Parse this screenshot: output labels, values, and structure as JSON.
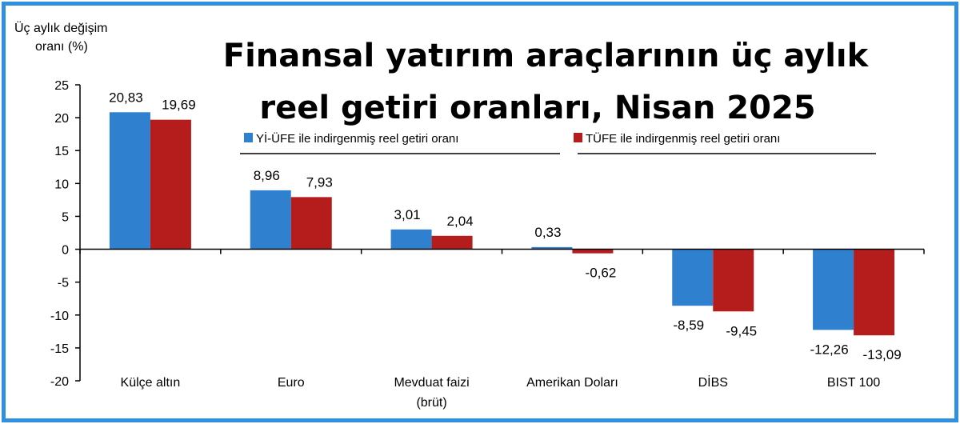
{
  "chart_data": {
    "type": "bar",
    "title": "Finansal yatırım araçlarının üç aylık reel getiri oranları, Nisan 2025",
    "title_lines": [
      "Finansal yatırım araçlarının üç aylık",
      "reel getiri oranları, Nisan 2025"
    ],
    "ylabel_lines": [
      "Üç aylık değişim",
      "oranı (%)"
    ],
    "xlabel": "",
    "ylim": [
      -20,
      25
    ],
    "yticks": [
      25,
      20,
      15,
      10,
      5,
      0,
      -5,
      -10,
      -15,
      -20
    ],
    "categories": [
      "Külçe altın",
      "Euro",
      "Mevduat faizi (brüt)",
      "Amerikan Doları",
      "DİBS",
      "BIST 100"
    ],
    "category_lines": [
      [
        "Külçe altın"
      ],
      [
        "Euro"
      ],
      [
        "Mevduat faizi",
        "(brüt)"
      ],
      [
        "Amerikan Doları"
      ],
      [
        "DİBS"
      ],
      [
        "BIST 100"
      ]
    ],
    "series": [
      {
        "name": "Yİ-ÜFE ile indirgenmiş reel getiri oranı",
        "color": "#2f80cf",
        "values": [
          20.83,
          8.96,
          3.01,
          0.33,
          -8.59,
          -12.26
        ],
        "labels": [
          "20,83",
          "8,96",
          "3,01",
          "0,33",
          "-8,59",
          "-12,26"
        ]
      },
      {
        "name": "TÜFE ile indirgenmiş reel getiri oranı",
        "color": "#b51c1c",
        "values": [
          19.69,
          7.93,
          2.04,
          -0.62,
          -9.45,
          -13.09
        ],
        "labels": [
          "19,69",
          "7,93",
          "2,04",
          "-0,62",
          "-9,45",
          "-13,09"
        ]
      }
    ],
    "grid": false,
    "legend": "top-right"
  },
  "colors": {
    "frame": "#2f8fe0",
    "axis": "#000000"
  }
}
